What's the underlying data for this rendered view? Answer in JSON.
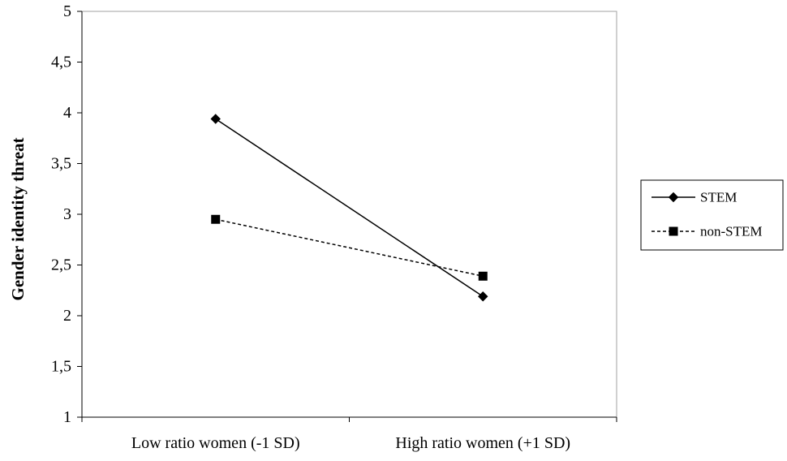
{
  "chart_data": {
    "type": "line",
    "title": "",
    "xlabel": "",
    "ylabel": "Gender identity threat",
    "categories": [
      "Low ratio women (-1 SD)",
      "High ratio women (+1 SD)"
    ],
    "ylim": [
      1,
      5
    ],
    "yticks": [
      1,
      1.5,
      2,
      2.5,
      3,
      3.5,
      4,
      4.5,
      5
    ],
    "ytick_labels": [
      "1",
      "1,5",
      "2",
      "2,5",
      "3",
      "3,5",
      "4",
      "4,5",
      "5"
    ],
    "grid": false,
    "legend_position": "right",
    "series": [
      {
        "name": "STEM",
        "values": [
          3.94,
          2.19
        ],
        "marker": "diamond",
        "line_style": "solid",
        "color": "#000000"
      },
      {
        "name": "non-STEM",
        "values": [
          2.95,
          2.39
        ],
        "marker": "square",
        "line_style": "dashed",
        "color": "#000000"
      }
    ]
  }
}
